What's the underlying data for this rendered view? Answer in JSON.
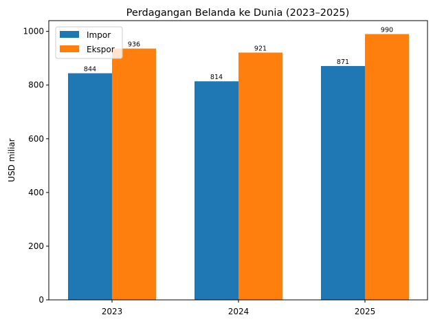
{
  "chart_data": {
    "type": "bar",
    "title": "Perdagangan Belanda ke Dunia (2023–2025)",
    "xlabel": "",
    "ylabel": "USD miliar",
    "categories": [
      "2023",
      "2024",
      "2025"
    ],
    "series": [
      {
        "name": "Impor",
        "values": [
          844,
          814,
          871
        ],
        "color": "#1f77b4"
      },
      {
        "name": "Ekspor",
        "values": [
          936,
          921,
          990
        ],
        "color": "#ff7f0e"
      }
    ],
    "ylim": [
      0,
      1040
    ],
    "yticks": [
      0,
      200,
      400,
      600,
      800,
      1000
    ],
    "grid": false,
    "legend": "top-left",
    "data_labels": true
  }
}
